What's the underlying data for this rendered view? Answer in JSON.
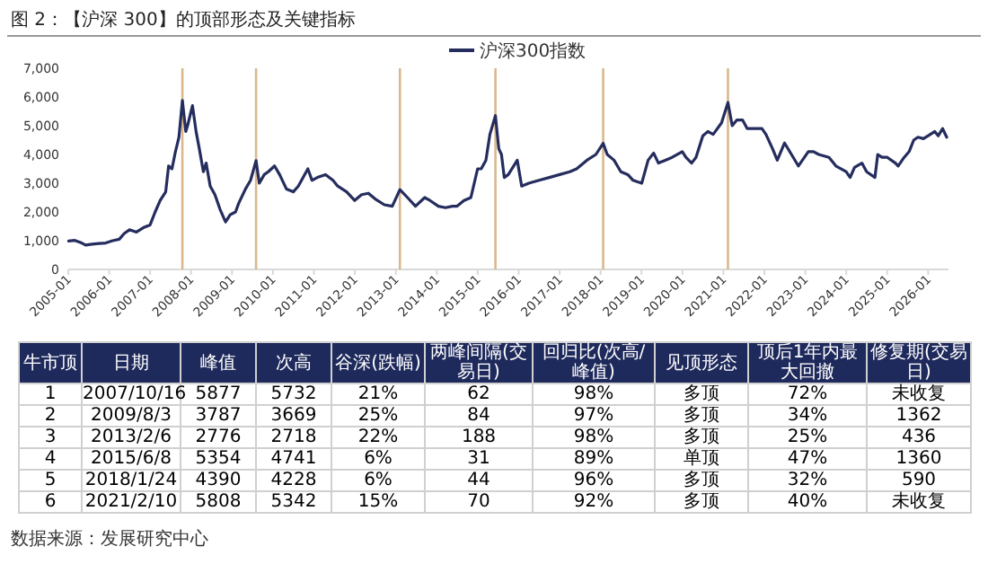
{
  "chart_data": {
    "type": "line",
    "title": "图 2：【沪深 300】的顶部形态及关键指标",
    "xlim": [
      "2005-01",
      "2026-07"
    ],
    "xticks": [
      "2005-01",
      "2006-01",
      "2007-01",
      "2008-01",
      "2009-01",
      "2010-01",
      "2011-01",
      "2012-01",
      "2013-01",
      "2014-01",
      "2015-01",
      "2016-01",
      "2017-01",
      "2018-01",
      "2019-01",
      "2020-01",
      "2021-01",
      "2022-01",
      "2023-01",
      "2024-01",
      "2025-01",
      "2026-01"
    ],
    "ylim": [
      0,
      7000
    ],
    "yticks": [
      0,
      {
        "value": 1000,
        "label": "1,000"
      },
      {
        "value": 2000,
        "label": "2,000"
      },
      {
        "value": 3000,
        "label": "3,000"
      },
      {
        "value": 4000,
        "label": "4,000"
      },
      {
        "value": 5000,
        "label": "5,000"
      },
      {
        "value": 6000,
        "label": "6,000"
      },
      {
        "value": 7000,
        "label": "7,000"
      }
    ],
    "legend": "top",
    "grid": false,
    "series": [
      {
        "name": "沪深300指数",
        "color": "#252d5e",
        "x": [
          "2005-01-04",
          "2005-03-01",
          "2005-05-01",
          "2005-06-05",
          "2005-08-01",
          "2005-10-01",
          "2005-12-01",
          "2006-02-01",
          "2006-04-01",
          "2006-05-15",
          "2006-07-01",
          "2006-09-01",
          "2006-11-01",
          "2007-01-01",
          "2007-02-15",
          "2007-04-01",
          "2007-05-20",
          "2007-06-15",
          "2007-07-15",
          "2007-08-15",
          "2007-09-15",
          "2007-10-16",
          "2007-11-15",
          "2007-12-01",
          "2008-01-14",
          "2008-02-15",
          "2008-03-15",
          "2008-04-20",
          "2008-05-15",
          "2008-06-20",
          "2008-08-01",
          "2008-09-15",
          "2008-11-04",
          "2008-12-15",
          "2009-02-01",
          "2009-03-01",
          "2009-05-01",
          "2009-06-15",
          "2009-08-03",
          "2009-09-01",
          "2009-10-15",
          "2009-11-20",
          "2010-01-15",
          "2010-03-01",
          "2010-05-01",
          "2010-07-01",
          "2010-08-15",
          "2010-11-08",
          "2010-12-15",
          "2011-02-01",
          "2011-04-15",
          "2011-06-20",
          "2011-08-01",
          "2011-10-20",
          "2011-12-30",
          "2012-03-01",
          "2012-05-01",
          "2012-07-01",
          "2012-09-20",
          "2012-11-30",
          "2013-02-06",
          "2013-04-15",
          "2013-06-25",
          "2013-09-15",
          "2013-11-01",
          "2014-01-15",
          "2014-03-20",
          "2014-05-20",
          "2014-07-01",
          "2014-09-01",
          "2014-11-01",
          "2014-12-31",
          "2015-02-01",
          "2015-03-15",
          "2015-04-20",
          "2015-06-08",
          "2015-07-08",
          "2015-08-01",
          "2015-08-26",
          "2015-10-01",
          "2015-12-20",
          "2016-01-28",
          "2016-04-01",
          "2016-07-01",
          "2016-10-01",
          "2017-01-01",
          "2017-04-01",
          "2017-06-01",
          "2017-09-01",
          "2017-11-20",
          "2018-01-24",
          "2018-03-01",
          "2018-05-01",
          "2018-07-01",
          "2018-09-01",
          "2018-10-18",
          "2019-01-03",
          "2019-03-01",
          "2019-04-19",
          "2019-06-01",
          "2019-08-01",
          "2019-10-01",
          "2019-12-31",
          "2020-02-01",
          "2020-03-23",
          "2020-05-01",
          "2020-07-01",
          "2020-08-15",
          "2020-10-01",
          "2020-12-15",
          "2021-02-10",
          "2021-03-20",
          "2021-05-01",
          "2021-06-20",
          "2021-08-01",
          "2021-10-01",
          "2021-12-10",
          "2022-01-15",
          "2022-03-15",
          "2022-04-26",
          "2022-06-30",
          "2022-08-15",
          "2022-10-31",
          "2023-01-28",
          "2023-03-15",
          "2023-05-01",
          "2023-07-31",
          "2023-10-01",
          "2023-12-31",
          "2024-02-05",
          "2024-03-15",
          "2024-05-20",
          "2024-07-01",
          "2024-09-13",
          "2024-10-08",
          "2024-11-15",
          "2025-01-01",
          "2025-03-15",
          "2025-04-08",
          "2025-06-01",
          "2025-07-15",
          "2025-08-25",
          "2025-10-01",
          "2025-11-20",
          "2026-01-20",
          "2026-03-01",
          "2026-04-01",
          "2026-05-10",
          "2026-06-15"
        ],
        "values": [
          990,
          1010,
          920,
          850,
          880,
          900,
          920,
          1000,
          1050,
          1250,
          1380,
          1300,
          1450,
          1550,
          2000,
          2400,
          2700,
          3600,
          3500,
          4100,
          4600,
          5877,
          4800,
          5000,
          5700,
          4800,
          4200,
          3400,
          3700,
          2900,
          2600,
          2100,
          1650,
          1900,
          2000,
          2300,
          2800,
          3100,
          3787,
          3000,
          3300,
          3400,
          3600,
          3300,
          2800,
          2700,
          2900,
          3500,
          3100,
          3200,
          3300,
          3100,
          2900,
          2700,
          2400,
          2600,
          2650,
          2450,
          2250,
          2200,
          2776,
          2500,
          2200,
          2500,
          2400,
          2200,
          2150,
          2200,
          2200,
          2400,
          2500,
          3500,
          3500,
          3800,
          4700,
          5354,
          4200,
          4000,
          3200,
          3300,
          3800,
          2900,
          3000,
          3100,
          3200,
          3300,
          3400,
          3500,
          3800,
          4000,
          4390,
          4000,
          3800,
          3400,
          3300,
          3100,
          3000,
          3800,
          4050,
          3700,
          3800,
          3900,
          4100,
          3900,
          3700,
          3900,
          4650,
          4800,
          4700,
          5100,
          5808,
          5000,
          5200,
          5200,
          4900,
          4900,
          4900,
          4700,
          4200,
          3800,
          4400,
          4100,
          3600,
          4100,
          4100,
          4000,
          3900,
          3600,
          3400,
          3200,
          3550,
          3700,
          3400,
          3200,
          4000,
          3900,
          3900,
          3700,
          3600,
          3900,
          4100,
          4500,
          4600,
          4550,
          4700,
          4800,
          4650,
          4900,
          4600
        ]
      }
    ],
    "ref_lines": [
      {
        "axis": "x",
        "value": "2007-10-16",
        "color": "#d9b88e"
      },
      {
        "axis": "x",
        "value": "2009-08-03",
        "color": "#d9b88e"
      },
      {
        "axis": "x",
        "value": "2013-02-06",
        "color": "#d9b88e"
      },
      {
        "axis": "x",
        "value": "2015-06-08",
        "color": "#d9b88e"
      },
      {
        "axis": "x",
        "value": "2018-01-24",
        "color": "#d9b88e"
      },
      {
        "axis": "x",
        "value": "2021-02-10",
        "color": "#d9b88e"
      }
    ],
    "annotations": [
      "牛市顶",
      "日期",
      "峰值",
      "次高",
      "谷深(跌幅)",
      "两峰间隔(交易日)",
      "回归比(次高/峰值)",
      "见顶形态",
      "顶后1年内最大回撤",
      "修复期(交易日)",
      "1",
      "2007/10/16",
      "5877",
      "5732",
      "21%",
      "62",
      "98%",
      "多顶",
      "72%",
      "未收复",
      "2",
      "2009/8/3",
      "3787",
      "3669",
      "25%",
      "84",
      "97%",
      "多顶",
      "34%",
      "1362",
      "3",
      "2013/2/6",
      "2776",
      "2718",
      "22%",
      "188",
      "98%",
      "多顶",
      "25%",
      "436",
      "4",
      "2015/6/8",
      "5354",
      "4741",
      "6%",
      "31",
      "89%",
      "单顶",
      "47%",
      "1360",
      "5",
      "2018/1/24",
      "4390",
      "4228",
      "6%",
      "44",
      "96%",
      "多顶",
      "32%",
      "590",
      "6",
      "2021/2/10",
      "5808",
      "5342",
      "15%",
      "70",
      "92%",
      "多顶",
      "40%",
      "未收复",
      "数据来源：发展研究中心"
    ]
  }
}
